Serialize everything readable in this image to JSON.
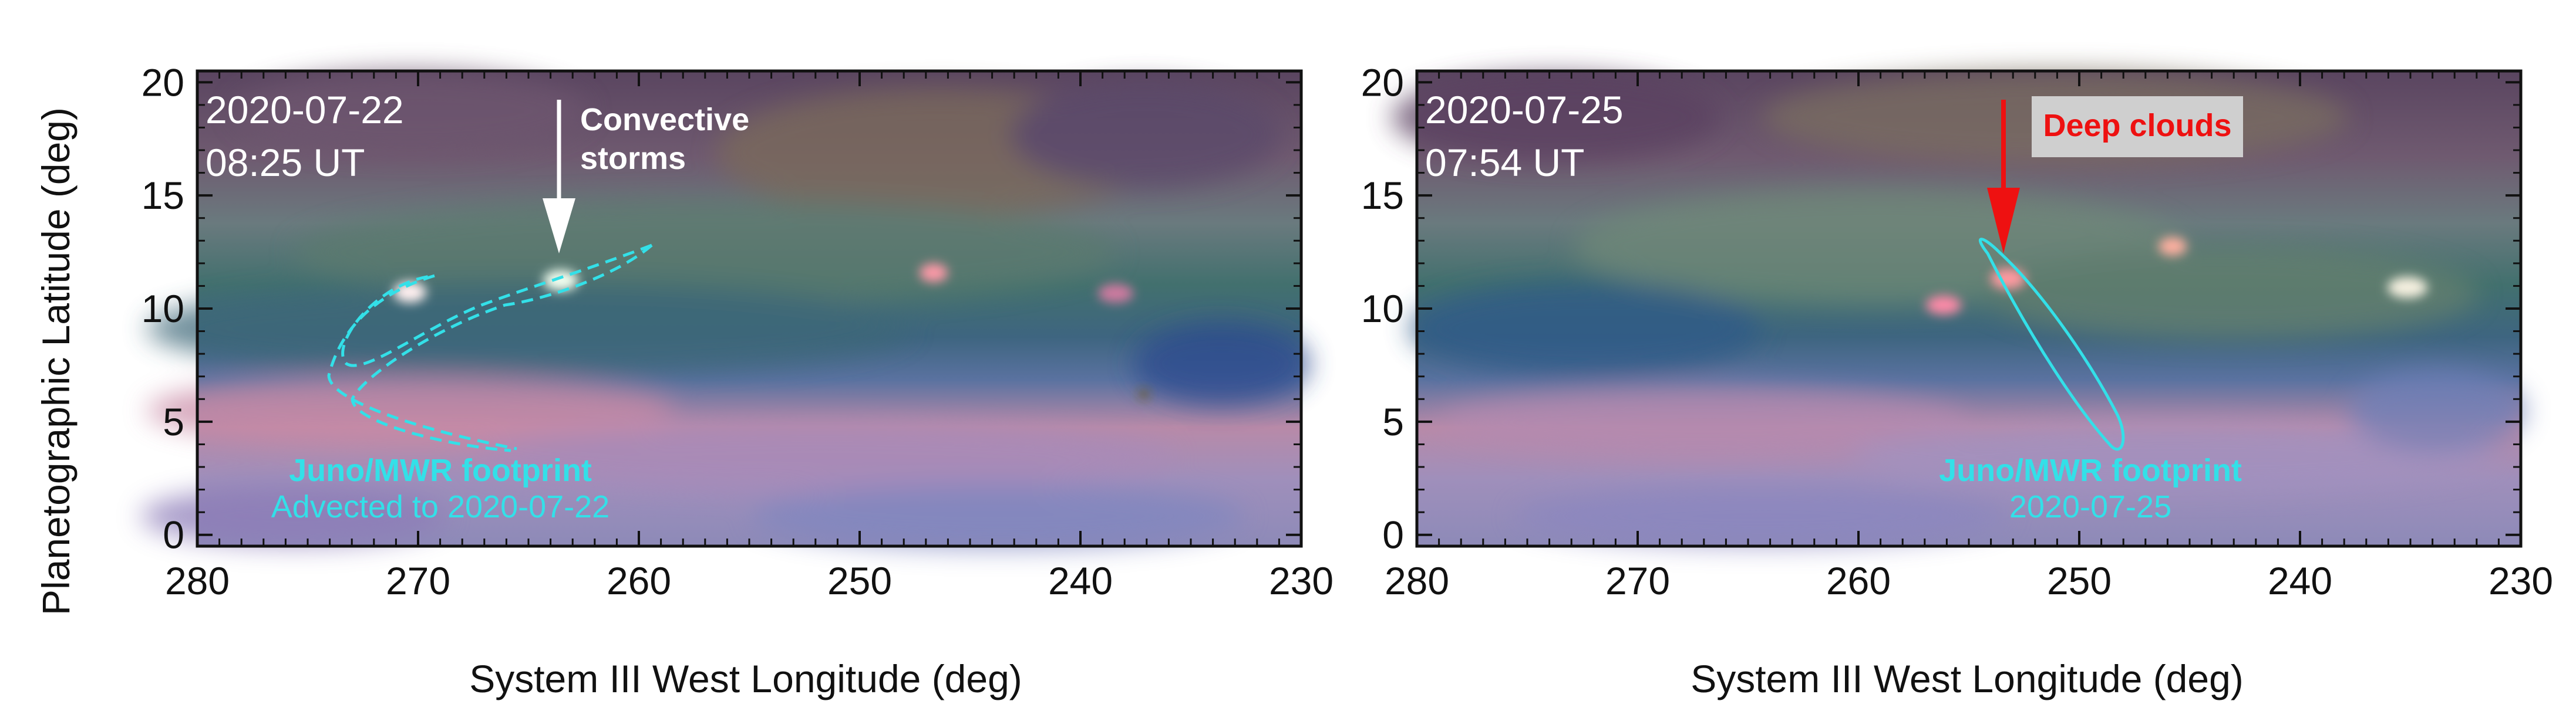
{
  "ylabel": "Planetographic Latitude (deg)",
  "panels": [
    {
      "xlabel": "System III West Longitude (deg)",
      "xticks": [
        "280",
        "270",
        "260",
        "250",
        "240",
        "230"
      ],
      "yticks": [
        "0",
        "5",
        "10",
        "15",
        "20"
      ],
      "x_range": [
        280,
        230
      ],
      "y_range": [
        -0.5,
        20.5
      ],
      "date": "2020-07-22",
      "time": "08:25 UT",
      "arrow_label_line1": "Convective",
      "arrow_label_line2": "storms",
      "arrow_color": "#ffffff",
      "footprint_label": "Juno/MWR footprint",
      "footprint_sublabel": "Advected to 2020-07-22",
      "footprint_color": "#33e0e8",
      "footprint_style": "dashed"
    },
    {
      "xlabel": "System III West Longitude (deg)",
      "xticks": [
        "280",
        "270",
        "260",
        "250",
        "240",
        "230"
      ],
      "yticks": [
        "0",
        "5",
        "10",
        "15",
        "20"
      ],
      "x_range": [
        280,
        230
      ],
      "y_range": [
        -0.5,
        20.5
      ],
      "date": "2020-07-25",
      "time": "07:54 UT",
      "arrow_label": "Deep clouds",
      "arrow_color": "#ee1111",
      "footprint_label": "Juno/MWR footprint",
      "footprint_sublabel": "2020-07-25",
      "footprint_color": "#33e0e8",
      "footprint_style": "solid"
    }
  ]
}
